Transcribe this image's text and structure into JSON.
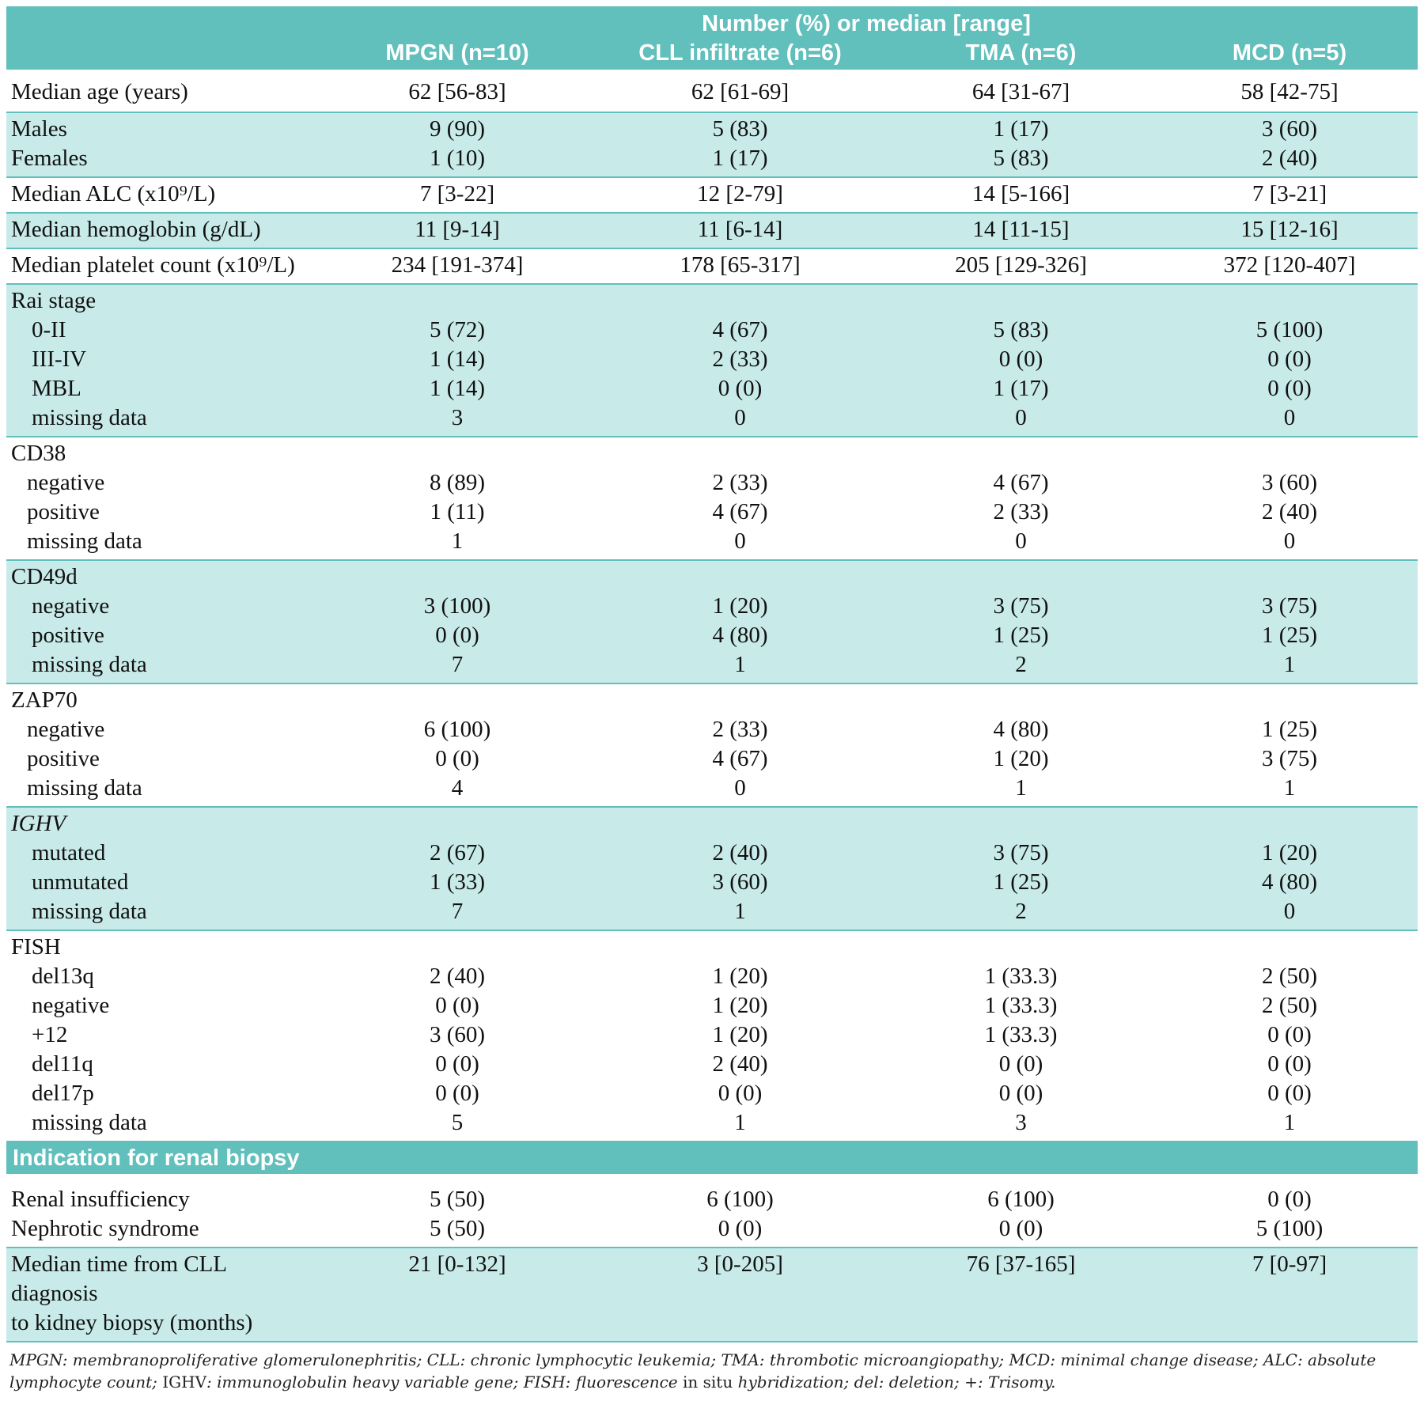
{
  "header": {
    "super": "Number (%) or median [range]",
    "columns": [
      "MPGN (n=10)",
      "CLL infiltrate (n=6)",
      "TMA (n=6)",
      "MCD (n=5)"
    ]
  },
  "rows": {
    "age": {
      "label": "Median age (years)",
      "v": [
        "62 [56-83]",
        "62 [61-69]",
        "64 [31-67]",
        "58 [42-75]"
      ]
    },
    "males": {
      "label": "Males",
      "v": [
        "9 (90)",
        "5 (83)",
        "1 (17)",
        "3 (60)"
      ]
    },
    "females": {
      "label": "Females",
      "v": [
        "1 (10)",
        "1 (17)",
        "5 (83)",
        "2 (40)"
      ]
    },
    "alc": {
      "label": "Median ALC (x10⁹/L)",
      "v": [
        "7 [3-22]",
        "12 [2-79]",
        "14 [5-166]",
        "7 [3-21]"
      ]
    },
    "hgb": {
      "label": "Median hemoglobin (g/dL)",
      "v": [
        "11 [9-14]",
        "11 [6-14]",
        "14 [11-15]",
        "15 [12-16]"
      ]
    },
    "plt": {
      "label": "Median platelet count (x10⁹/L)",
      "v": [
        "234 [191-374]",
        "178 [65-317]",
        "205 [129-326]",
        "372 [120-407]"
      ]
    }
  },
  "groups": {
    "rai": {
      "title": "Rai stage",
      "items": [
        {
          "label": "0-II",
          "v": [
            "5 (72)",
            "4 (67)",
            "5 (83)",
            "5 (100)"
          ]
        },
        {
          "label": "III-IV",
          "v": [
            "1 (14)",
            "2 (33)",
            "0 (0)",
            "0 (0)"
          ]
        },
        {
          "label": "MBL",
          "v": [
            "1 (14)",
            "0 (0)",
            "1 (17)",
            "0 (0)"
          ]
        },
        {
          "label": "missing data",
          "v": [
            "3",
            "0",
            "0",
            "0"
          ]
        }
      ]
    },
    "cd38": {
      "title": "CD38",
      "items": [
        {
          "label": "negative",
          "v": [
            "8 (89)",
            "2 (33)",
            "4 (67)",
            "3 (60)"
          ]
        },
        {
          "label": "positive",
          "v": [
            "1 (11)",
            "4 (67)",
            "2 (33)",
            "2 (40)"
          ]
        },
        {
          "label": "missing data",
          "v": [
            "1",
            "0",
            "0",
            "0"
          ]
        }
      ]
    },
    "cd49d": {
      "title": "CD49d",
      "items": [
        {
          "label": "negative",
          "v": [
            "3 (100)",
            "1 (20)",
            "3 (75)",
            "3 (75)"
          ]
        },
        {
          "label": "positive",
          "v": [
            "0 (0)",
            "4 (80)",
            "1 (25)",
            "1 (25)"
          ]
        },
        {
          "label": "missing data",
          "v": [
            "7",
            "1",
            "2",
            "1"
          ]
        }
      ]
    },
    "zap70": {
      "title": "ZAP70",
      "items": [
        {
          "label": "negative",
          "v": [
            "6 (100)",
            "2 (33)",
            "4 (80)",
            "1 (25)"
          ]
        },
        {
          "label": "positive",
          "v": [
            "0 (0)",
            "4 (67)",
            "1 (20)",
            "3 (75)"
          ]
        },
        {
          "label": "missing data",
          "v": [
            "4",
            "0",
            "1",
            "1"
          ]
        }
      ]
    },
    "ighv": {
      "title": "IGHV",
      "items": [
        {
          "label": "mutated",
          "v": [
            "2 (67)",
            "2 (40)",
            "3 (75)",
            "1 (20)"
          ]
        },
        {
          "label": "unmutated",
          "v": [
            "1 (33)",
            "3 (60)",
            "1 (25)",
            "4 (80)"
          ]
        },
        {
          "label": "missing data",
          "v": [
            "7",
            "1",
            "2",
            "0"
          ]
        }
      ]
    },
    "fish": {
      "title": "FISH",
      "items": [
        {
          "label": "del13q",
          "v": [
            "2 (40)",
            "1 (20)",
            "1 (33.3)",
            "2 (50)"
          ]
        },
        {
          "label": "negative",
          "v": [
            "0 (0)",
            "1 (20)",
            "1 (33.3)",
            "2 (50)"
          ]
        },
        {
          "label": "+12",
          "v": [
            "3 (60)",
            "1 (20)",
            "1 (33.3)",
            "0 (0)"
          ]
        },
        {
          "label": "del11q",
          "v": [
            "0 (0)",
            "2 (40)",
            "0 (0)",
            "0 (0)"
          ]
        },
        {
          "label": "del17p",
          "v": [
            "0 (0)",
            "0 (0)",
            "0 (0)",
            "0 (0)"
          ]
        },
        {
          "label": "missing data",
          "v": [
            "5",
            "1",
            "3",
            "1"
          ]
        }
      ]
    }
  },
  "indication": {
    "title": "Indication for renal biopsy",
    "items": [
      {
        "label": "Renal insufficiency",
        "v": [
          "5 (50)",
          "6 (100)",
          "6 (100)",
          "0 (0)"
        ]
      },
      {
        "label": "Nephrotic syndrome",
        "v": [
          "5 (50)",
          "0 (0)",
          "0 (0)",
          "5 (100)"
        ]
      }
    ]
  },
  "time": {
    "label_line1": "Median time from CLL diagnosis",
    "label_line2": "to kidney biopsy (months)",
    "v": [
      "21 [0-132]",
      "3 [0-205]",
      "76 [37-165]",
      "7 [0-97]"
    ]
  },
  "footnote": {
    "part1": "MPGN: membranoproliferative glomerulonephritis; CLL: chronic lymphocytic leukemia; TMA: thrombotic microangiopathy; MCD: minimal change disease; ALC: absolute lymphocyte count; ",
    "ighv": "IGHV",
    "part2": ": immunoglobulin heavy variable gene; FISH: fluorescence ",
    "insitu": "in situ",
    "part3": " hybridization; del: deletion; +: Trisomy."
  },
  "colors": {
    "header_bg": "#61bfbc",
    "shade_bg": "#c8ebea",
    "rule": "#61bfbc"
  }
}
